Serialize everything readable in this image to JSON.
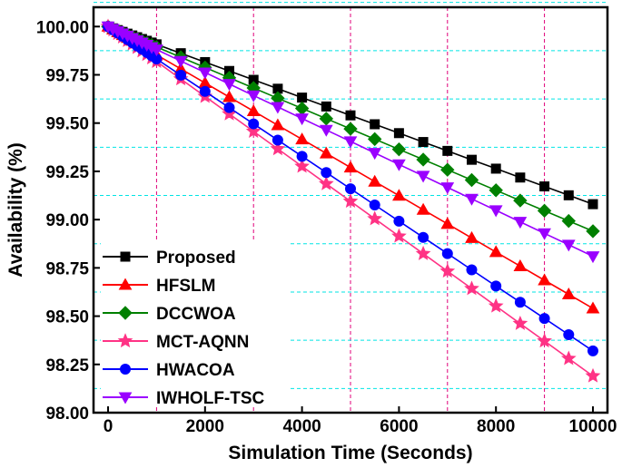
{
  "chart_data": {
    "type": "line",
    "xlabel": "Simulation Time (Seconds)",
    "ylabel": "Availability (%)",
    "xlim": [
      -300,
      10300
    ],
    "ylim": [
      98.0,
      100.1
    ],
    "xticks": [
      0,
      2000,
      4000,
      6000,
      8000,
      10000
    ],
    "xtick_labels": [
      "0",
      "2000",
      "4000",
      "6000",
      "8000",
      "10000"
    ],
    "yticks": [
      98.0,
      98.25,
      98.5,
      98.75,
      99.0,
      99.25,
      99.5,
      99.75,
      100.0
    ],
    "ytick_labels": [
      "98.00",
      "98.25",
      "98.50",
      "98.75",
      "99.00",
      "99.25",
      "99.50",
      "99.75",
      "100.00"
    ],
    "grid": {
      "vertical_at": [
        1000,
        3000,
        5000,
        7000,
        9000
      ],
      "horizontal_at": [
        98.125,
        98.375,
        98.625,
        98.875,
        99.125,
        99.375,
        99.625,
        99.875,
        100.125
      ],
      "vertical_color": "#e0007a",
      "horizontal_color": "#00e5e5"
    },
    "legend_position": "bottom-left",
    "series": [
      {
        "name": "Proposed",
        "color": "#000000",
        "marker": "square",
        "final": 99.08
      },
      {
        "name": "HFSLM",
        "color": "#ff0000",
        "marker": "triangle-up",
        "final": 98.54
      },
      {
        "name": "DCCWOA",
        "color": "#008000",
        "marker": "diamond",
        "final": 98.94
      },
      {
        "name": "MCT-AQNN",
        "color": "#ff3385",
        "marker": "star",
        "final": 98.19
      },
      {
        "name": "HWACOA",
        "color": "#0000ff",
        "marker": "circle",
        "final": 98.32
      },
      {
        "name": "IWHOLF-TSC",
        "color": "#9a00ff",
        "marker": "triangle-down",
        "final": 98.81
      }
    ],
    "x": [
      0,
      100,
      200,
      300,
      400,
      500,
      600,
      700,
      800,
      900,
      1000,
      1500,
      2000,
      2500,
      3000,
      3500,
      4000,
      4500,
      5000,
      5500,
      6000,
      6500,
      7000,
      7500,
      8000,
      8500,
      9000,
      9500,
      10000
    ],
    "start_value": 100.0
  }
}
